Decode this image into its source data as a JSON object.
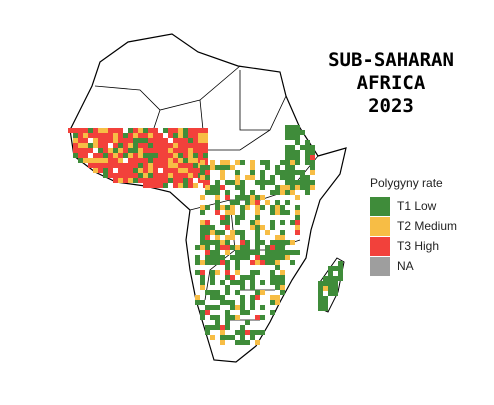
{
  "title_lines": [
    "SUB-SAHARAN",
    "AFRICA",
    "2023"
  ],
  "legend": {
    "title": "Polygyny rate",
    "items": [
      {
        "label": "T1 Low",
        "color": "#3f8c3a"
      },
      {
        "label": "T2 Medium",
        "color": "#f7bd45"
      },
      {
        "label": "T3 High",
        "color": "#f2413b"
      },
      {
        "label": "NA",
        "color": "#9e9e9e"
      }
    ]
  }
}
